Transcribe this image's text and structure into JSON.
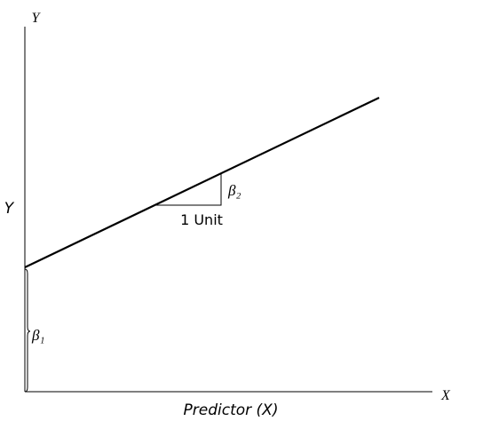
{
  "y_axis_label": "Y",
  "x_axis_label": "X",
  "y_title": "Y",
  "x_title": "Predictor (X)",
  "annotations": {
    "intercept": "β₁",
    "slope": "β₂",
    "run": "1 Unit"
  }
}
